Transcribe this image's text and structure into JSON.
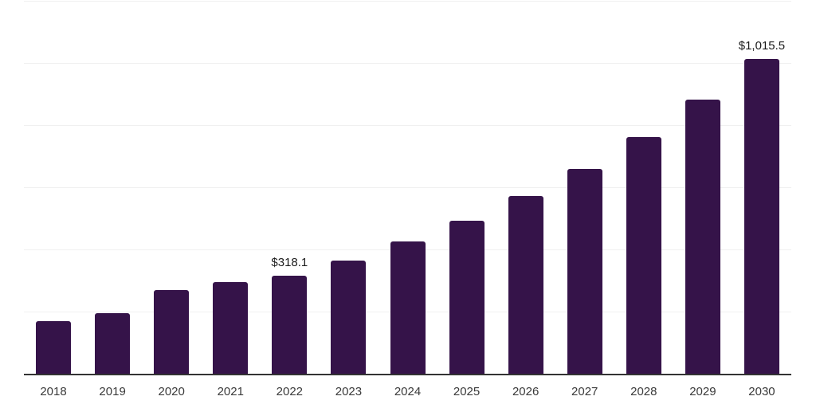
{
  "chart_data": {
    "type": "bar",
    "categories": [
      "2018",
      "2019",
      "2020",
      "2021",
      "2022",
      "2023",
      "2024",
      "2025",
      "2026",
      "2027",
      "2028",
      "2029",
      "2030"
    ],
    "values": [
      171,
      197,
      273,
      297,
      318.1,
      367,
      427,
      496,
      574,
      662,
      765,
      885,
      1015.5
    ],
    "data_labels": [
      "",
      "",
      "",
      "",
      "$318.1",
      "",
      "",
      "",
      "",
      "",
      "",
      "",
      "$1,015.5"
    ],
    "xlabel": "",
    "ylabel": "",
    "ylim": [
      0,
      1200
    ],
    "gridline_values": [
      200,
      400,
      600,
      800,
      1000,
      1200
    ],
    "grid": true,
    "legend": "none",
    "colors": {
      "bar": "#351349",
      "axis_line": "#333333",
      "gridline": "#f0f0f0",
      "tick_label": "#3a3a3a",
      "data_label": "#1a1a1a",
      "background": "#ffffff"
    }
  }
}
